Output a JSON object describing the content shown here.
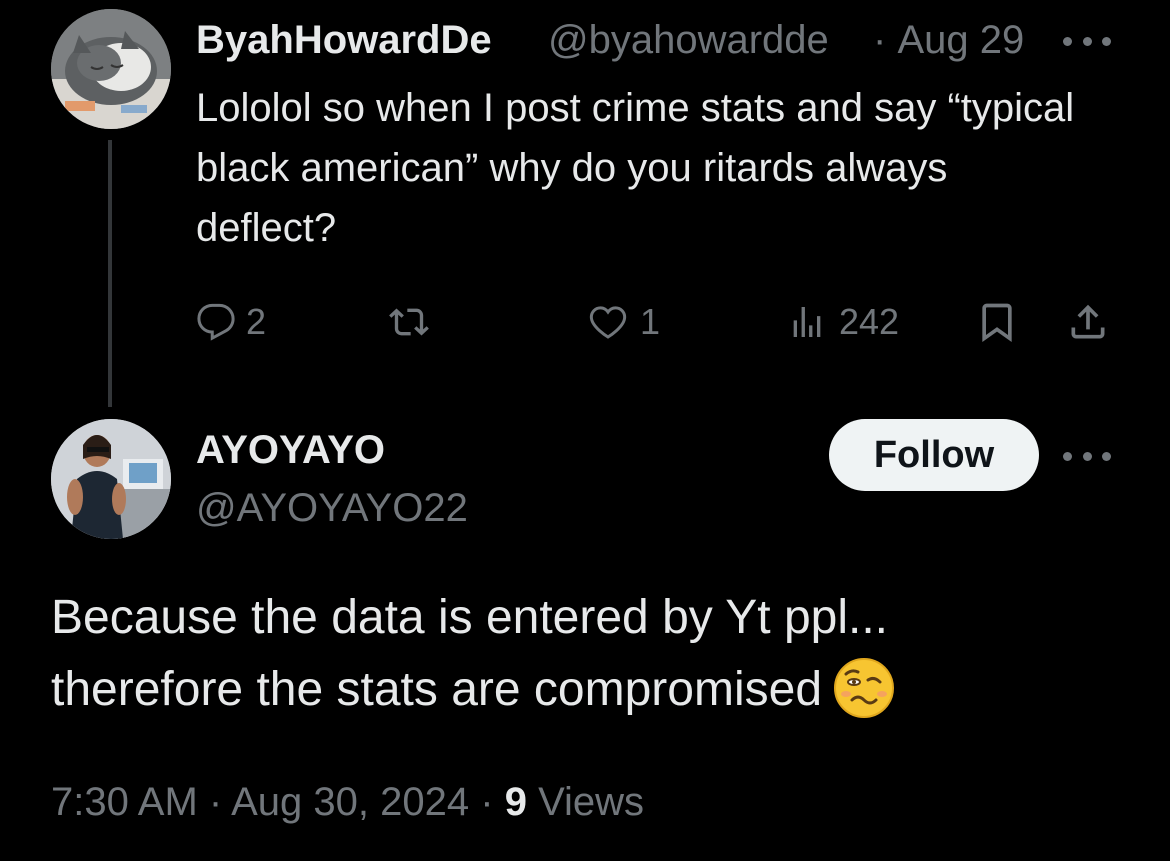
{
  "parent_tweet": {
    "display_name": "ByahHowardDe",
    "handle": "@byahowardde",
    "separator": "·",
    "date": "Aug 29",
    "text": "Lololol so when I post crime stats and say “typical black american” why do you ritards always deflect?",
    "actions": {
      "reply_count": "2",
      "retweet_count": "",
      "like_count": "1",
      "view_count": "242"
    },
    "icons": [
      "reply-icon",
      "retweet-icon",
      "like-icon",
      "views-icon",
      "bookmark-icon",
      "share-icon",
      "more-icon"
    ]
  },
  "reply_tweet": {
    "display_name": "AYOYAYO",
    "handle": "@AYOYAYO22",
    "follow_label": "Follow",
    "text_line1": "Because the data is entered by Yt ppl...",
    "text_line2": "therefore the stats are compromised",
    "emoji": "woozy-face-emoji",
    "meta": {
      "time": "7:30 AM",
      "separator": "·",
      "date": "Aug 30, 2024",
      "views_count": "9",
      "views_label": "Views"
    }
  },
  "colors": {
    "background": "#000000",
    "primary_text": "#e7e9ea",
    "secondary_text": "#71767b",
    "thread_line": "#333639",
    "follow_button_bg": "#eff3f4",
    "follow_button_text": "#0f1419"
  }
}
